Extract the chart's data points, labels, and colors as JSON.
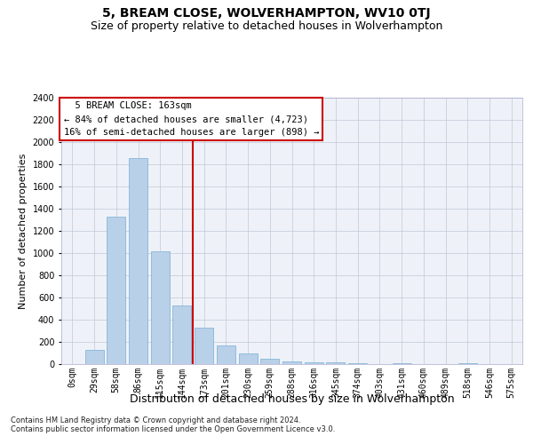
{
  "title": "5, BREAM CLOSE, WOLVERHAMPTON, WV10 0TJ",
  "subtitle": "Size of property relative to detached houses in Wolverhampton",
  "xlabel": "Distribution of detached houses by size in Wolverhampton",
  "ylabel": "Number of detached properties",
  "categories": [
    "0sqm",
    "29sqm",
    "58sqm",
    "86sqm",
    "115sqm",
    "144sqm",
    "173sqm",
    "201sqm",
    "230sqm",
    "259sqm",
    "288sqm",
    "316sqm",
    "345sqm",
    "374sqm",
    "403sqm",
    "431sqm",
    "460sqm",
    "489sqm",
    "518sqm",
    "546sqm",
    "575sqm"
  ],
  "values": [
    0,
    130,
    1330,
    1860,
    1020,
    530,
    330,
    165,
    100,
    50,
    25,
    20,
    15,
    10,
    0,
    10,
    0,
    0,
    10,
    0,
    0
  ],
  "bar_color": "#b8d0e8",
  "bar_edge_color": "#7aafd4",
  "vline_x": 5.5,
  "vline_color": "#cc0000",
  "ylim": [
    0,
    2400
  ],
  "yticks": [
    0,
    200,
    400,
    600,
    800,
    1000,
    1200,
    1400,
    1600,
    1800,
    2000,
    2200,
    2400
  ],
  "annotation_text": "  5 BREAM CLOSE: 163sqm\n← 84% of detached houses are smaller (4,723)\n16% of semi-detached houses are larger (898) →",
  "annotation_box_color": "#ffffff",
  "annotation_box_edge": "#cc0000",
  "bg_color": "#eef2f8",
  "footer1": "Contains HM Land Registry data © Crown copyright and database right 2024.",
  "footer2": "Contains public sector information licensed under the Open Government Licence v3.0.",
  "title_fontsize": 10,
  "subtitle_fontsize": 9,
  "tick_fontsize": 7,
  "ylabel_fontsize": 8,
  "xlabel_fontsize": 9,
  "footer_fontsize": 6,
  "annotation_fontsize": 7.5
}
